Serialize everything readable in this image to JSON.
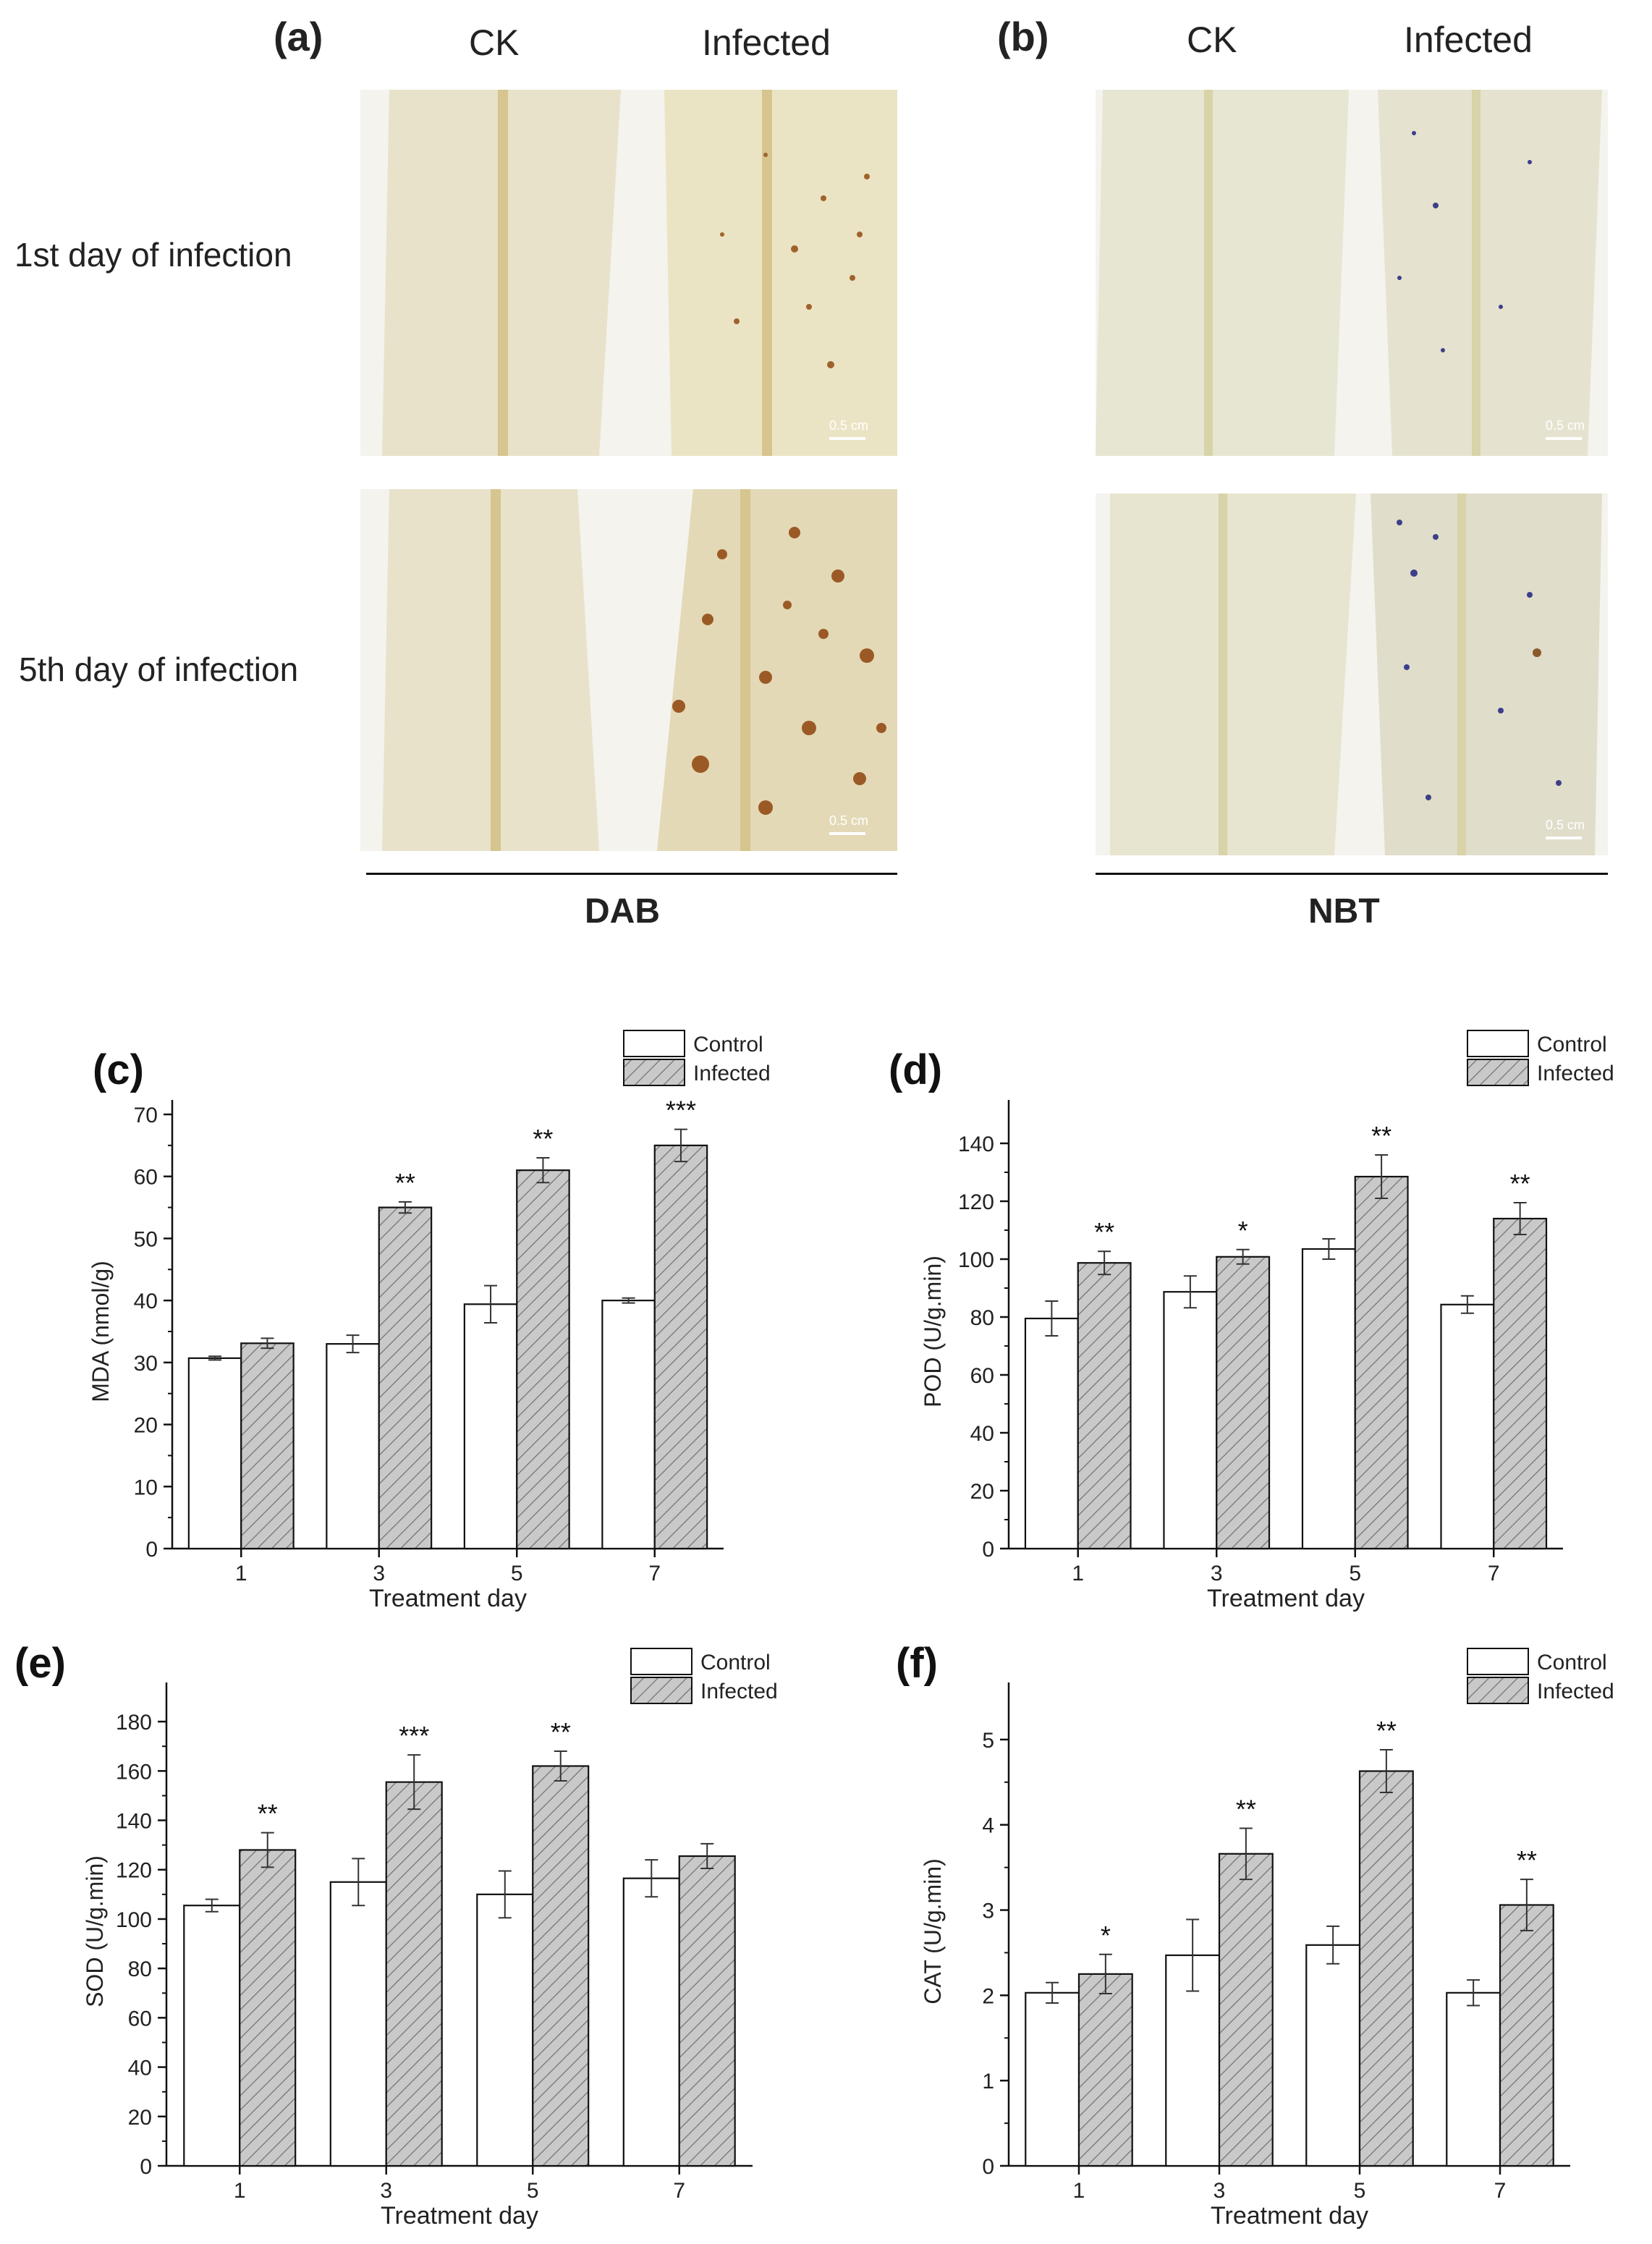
{
  "photos": {
    "panel_a": {
      "label": "(a)",
      "col_ck": "CK",
      "col_infected": "Infected",
      "stain": "DAB"
    },
    "panel_b": {
      "label": "(b)",
      "col_ck": "CK",
      "col_infected": "Infected",
      "stain": "NBT"
    },
    "row1": "1st day of infection",
    "row2": "5th day of infection",
    "scale_bar": "0.5 cm",
    "colors": {
      "dab_spot": "#9b5a25",
      "nbt_spot": "#3d3f8a",
      "leaf": "#ece9d8"
    }
  },
  "chart_data": [
    {
      "id": "c",
      "panel": "(c)",
      "type": "bar",
      "categories": [
        "1",
        "3",
        "5",
        "7"
      ],
      "xlabel": "Treatment day",
      "ylabel": "MDA (nmol/g)",
      "ylim": [
        0,
        70
      ],
      "yticks": [
        0,
        10,
        20,
        30,
        40,
        50,
        60,
        70
      ],
      "legend": [
        "Control",
        "Infected"
      ],
      "series": [
        {
          "name": "Control",
          "values": [
            30.7,
            33.0,
            39.4,
            40.0
          ],
          "errors": [
            0.3,
            1.4,
            3.0,
            0.4
          ]
        },
        {
          "name": "Infected",
          "values": [
            33.1,
            55.0,
            61.0,
            65.0
          ],
          "errors": [
            0.8,
            0.9,
            2.0,
            2.6
          ]
        }
      ],
      "significance": [
        "",
        "**",
        "**",
        "***"
      ]
    },
    {
      "id": "d",
      "panel": "(d)",
      "type": "bar",
      "categories": [
        "1",
        "3",
        "5",
        "7"
      ],
      "xlabel": "Treatment day",
      "ylabel": "POD (U/g.min)",
      "ylim": [
        0,
        150
      ],
      "yticks": [
        0,
        20,
        40,
        60,
        80,
        100,
        120,
        140
      ],
      "legend": [
        "Control",
        "Infected"
      ],
      "series": [
        {
          "name": "Control",
          "values": [
            79.5,
            88.7,
            103.5,
            84.3
          ],
          "errors": [
            6.0,
            5.5,
            3.5,
            3.0
          ]
        },
        {
          "name": "Infected",
          "values": [
            98.7,
            100.8,
            128.5,
            114.0
          ],
          "errors": [
            4.0,
            2.5,
            7.5,
            5.5
          ]
        }
      ],
      "significance": [
        "**",
        "*",
        "**",
        "**"
      ]
    },
    {
      "id": "e",
      "panel": "(e)",
      "type": "bar",
      "categories": [
        "1",
        "3",
        "5",
        "7"
      ],
      "xlabel": "Treatment day",
      "ylabel": "SOD (U/g.min)",
      "ylim": [
        0,
        190
      ],
      "yticks": [
        0,
        20,
        40,
        60,
        80,
        100,
        120,
        140,
        160,
        180
      ],
      "legend": [
        "Control",
        "Infected"
      ],
      "series": [
        {
          "name": "Control",
          "values": [
            105.5,
            115.0,
            110.0,
            116.5
          ],
          "errors": [
            2.5,
            9.5,
            9.5,
            7.5
          ]
        },
        {
          "name": "Infected",
          "values": [
            128.0,
            155.5,
            162.0,
            125.5
          ],
          "errors": [
            7.0,
            11.0,
            6.0,
            5.0
          ]
        }
      ],
      "significance": [
        "**",
        "***",
        "**",
        ""
      ]
    },
    {
      "id": "f",
      "panel": "(f)",
      "type": "bar",
      "categories": [
        "1",
        "3",
        "5",
        "7"
      ],
      "xlabel": "Treatment day",
      "ylabel": "CAT (U/g.min)",
      "ylim": [
        0,
        5.5
      ],
      "yticks": [
        0,
        1,
        2,
        3,
        4,
        5
      ],
      "legend": [
        "Control",
        "Infected"
      ],
      "series": [
        {
          "name": "Control",
          "values": [
            2.03,
            2.47,
            2.59,
            2.03
          ],
          "errors": [
            0.12,
            0.42,
            0.22,
            0.15
          ]
        },
        {
          "name": "Infected",
          "values": [
            2.25,
            3.66,
            4.63,
            3.06
          ],
          "errors": [
            0.23,
            0.3,
            0.25,
            0.3
          ]
        }
      ],
      "significance": [
        "*",
        "**",
        "**",
        "**"
      ]
    }
  ]
}
